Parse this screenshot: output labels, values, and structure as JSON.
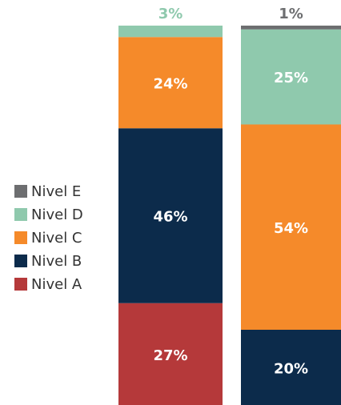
{
  "chart_data": {
    "type": "stacked_bar",
    "categories": [
      null,
      null
    ],
    "ylim": [
      0,
      100
    ],
    "legend": "left",
    "series": [
      {
        "name": "Nivel A",
        "color": "#b5393a",
        "values": [
          27,
          0
        ],
        "value_labels": [
          "27%",
          null
        ]
      },
      {
        "name": "Nivel B",
        "color": "#0c2b4b",
        "values": [
          46,
          20
        ],
        "value_labels": [
          "46%",
          "20%"
        ]
      },
      {
        "name": "Nivel C",
        "color": "#f58a2a",
        "values": [
          24,
          54
        ],
        "value_labels": [
          "24%",
          "54%"
        ]
      },
      {
        "name": "Nivel D",
        "color": "#8fc9ad",
        "values": [
          3,
          25
        ],
        "value_labels": [
          "3%",
          "25%"
        ]
      },
      {
        "name": "Nivel E",
        "color": "#6d6e70",
        "values": [
          0,
          1
        ],
        "value_labels": [
          null,
          "1%"
        ]
      }
    ]
  }
}
